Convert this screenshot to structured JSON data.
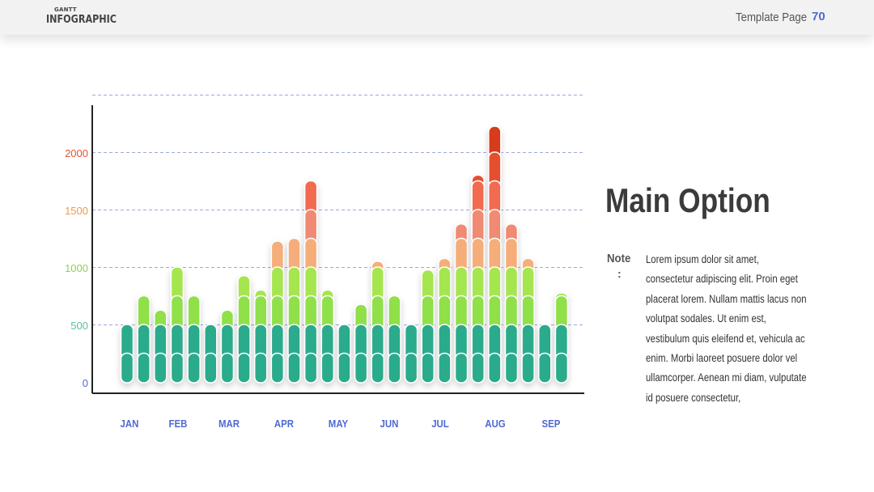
{
  "header": {
    "brand_small": "GANTT",
    "brand_big": "INFOGRAPHIC",
    "template_label": "Template Page",
    "page_number": "70"
  },
  "content": {
    "title": "Main Option",
    "note_label": "Note",
    "note_colon": ":",
    "note_text": "Lorem ipsum dolor sit amet, consectetur adipiscing elit. Proin eget placerat lorem. Nullam mattis lacus non volutpat sodales. Ut enim est, vestibulum quis eleifend et, vehicula ac enim. Morbi laoreet posuere dolor vel ullamcorper. Aenean mi diam, vulputate id posuere consectetur,"
  },
  "chart_data": {
    "type": "bar",
    "stacked": true,
    "ylim": [
      0,
      2500
    ],
    "yticks": [
      0,
      500,
      1000,
      1500,
      2000
    ],
    "ytick_labels": [
      "0",
      "500",
      "1000",
      "1500",
      "2000"
    ],
    "ytick_colors": [
      "#4f6ad1",
      "#5cbfa0",
      "#8fd14f",
      "#f2994a",
      "#e55330"
    ],
    "grid": "horizontal dashed",
    "month_labels": [
      "JAN",
      "FEB",
      "MAR",
      "APR",
      "MAY",
      "JUN",
      "JUL",
      "AUG",
      "SEP"
    ],
    "month_label_color": "#4f6ad1",
    "segment_size": 250,
    "segment_colors": [
      "#2bab8c",
      "#2bab8c",
      "#8fe04a",
      "#a5e64f",
      "#f5ae7a",
      "#f08a72",
      "#f26a50",
      "#e6502e",
      "#d63a1d",
      "#7a1a0c"
    ],
    "values": [
      500,
      750,
      625,
      1000,
      750,
      500,
      625,
      925,
      800,
      1225,
      1250,
      1750,
      800,
      500,
      675,
      1050,
      750,
      500,
      975,
      1075,
      1375,
      1800,
      2225,
      1375,
      1075,
      500,
      775
    ]
  }
}
